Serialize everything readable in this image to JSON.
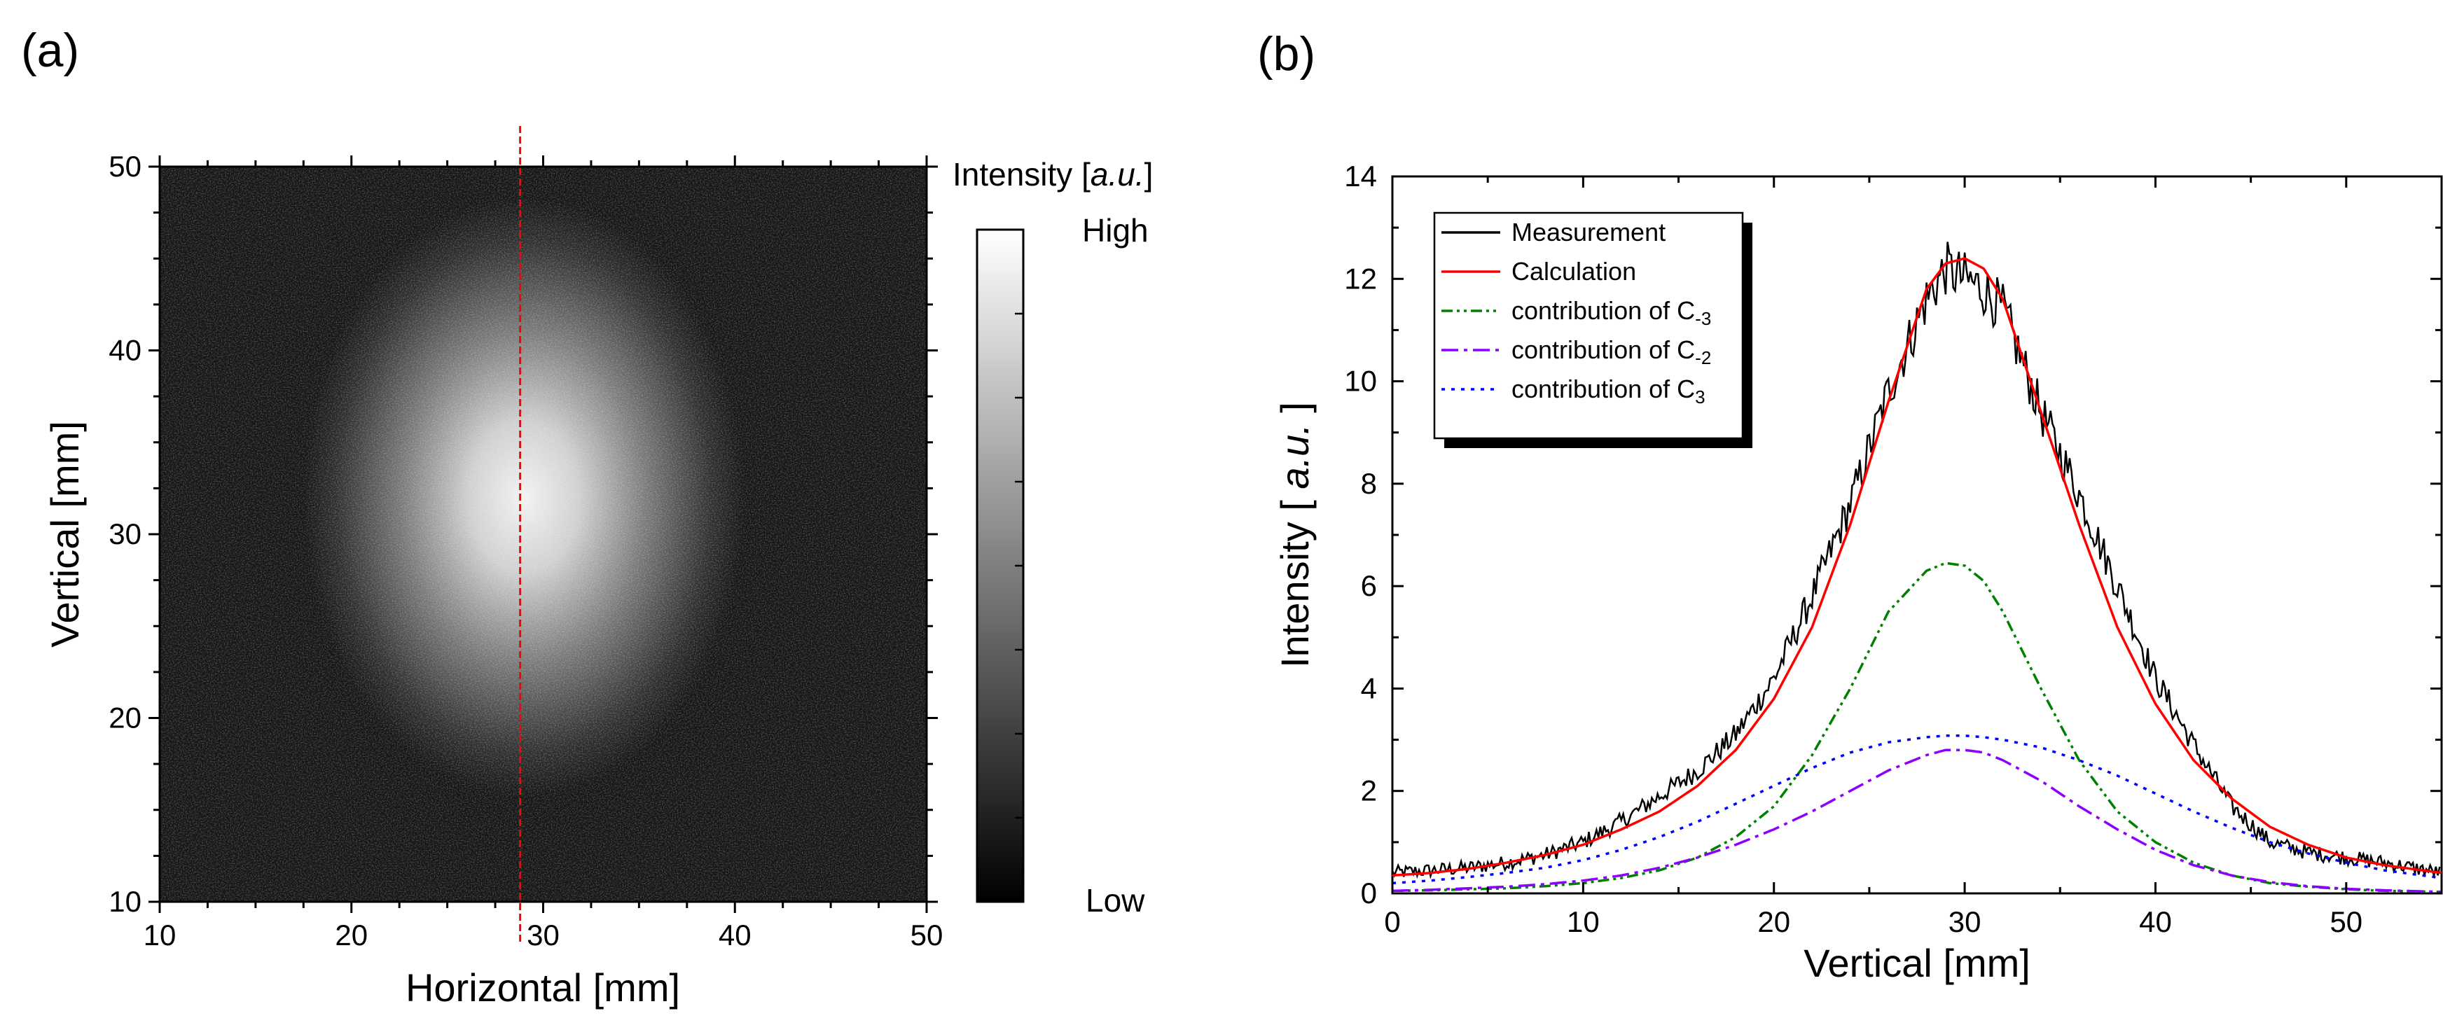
{
  "panel_a_label": "(a)",
  "panel_b_label": "(b)",
  "chart_data": [
    {
      "type": "heatmap",
      "panel": "(a)",
      "title": "",
      "xlabel": "Horizontal [mm]",
      "ylabel": "Vertical [mm]",
      "xlim": [
        10,
        50
      ],
      "ylim": [
        10,
        50
      ],
      "xticks": [
        "10",
        "20",
        "30",
        "40",
        "50"
      ],
      "yticks": [
        "10",
        "20",
        "30",
        "40",
        "50"
      ],
      "colormap": "grayscale (black = low, white = high)",
      "colorbar_title_prefix": "Intensity [",
      "colorbar_title_italic": "a.u.",
      "colorbar_title_suffix": "]",
      "colorbar_high": "High",
      "colorbar_low": "Low",
      "spot_center": [
        29,
        32
      ],
      "spot_sigma_mm": [
        4.8,
        6.8
      ],
      "marker_line_x": 28.8,
      "marker_line_color": "#ff0000"
    },
    {
      "type": "line",
      "panel": "(b)",
      "xlabel": "Vertical [mm]",
      "ylabel_prefix": "Intensity [",
      "ylabel_italic": " a.u. ",
      "ylabel_suffix": "]",
      "xlim": [
        0,
        55
      ],
      "ylim": [
        0,
        14
      ],
      "xticks": [
        "0",
        "10",
        "20",
        "30",
        "40",
        "50"
      ],
      "yticks": [
        "0",
        "2",
        "4",
        "6",
        "8",
        "10",
        "12",
        "14"
      ],
      "legend_position": "top-left",
      "series": [
        {
          "name": "Measurement",
          "color": "#000000",
          "style": "solid",
          "x": [
            0,
            2,
            4,
            6,
            8,
            10,
            12,
            14,
            16,
            18,
            20,
            22,
            24,
            26,
            28,
            29,
            30,
            31,
            32,
            34,
            36,
            38,
            40,
            42,
            44,
            46,
            48,
            50,
            52,
            55
          ],
          "y": [
            0.4,
            0.45,
            0.5,
            0.6,
            0.75,
            1.0,
            1.4,
            1.9,
            2.4,
            3.1,
            4.2,
            5.8,
            7.6,
            9.8,
            11.6,
            12.2,
            12.0,
            11.8,
            11.4,
            9.4,
            7.8,
            6.0,
            4.2,
            2.9,
            1.7,
            1.0,
            0.8,
            0.7,
            0.6,
            0.4
          ]
        },
        {
          "name": "Calculation",
          "color": "#ff0000",
          "style": "solid",
          "x": [
            0,
            2,
            4,
            6,
            8,
            10,
            12,
            14,
            16,
            18,
            20,
            22,
            24,
            26,
            28,
            29,
            30,
            31,
            32,
            34,
            36,
            38,
            40,
            42,
            44,
            46,
            48,
            50,
            52,
            55
          ],
          "y": [
            0.35,
            0.4,
            0.48,
            0.6,
            0.75,
            0.95,
            1.25,
            1.6,
            2.1,
            2.8,
            3.8,
            5.2,
            7.2,
            9.6,
            11.8,
            12.3,
            12.4,
            12.2,
            11.6,
            9.4,
            7.2,
            5.2,
            3.7,
            2.6,
            1.85,
            1.3,
            0.95,
            0.7,
            0.55,
            0.4
          ]
        },
        {
          "name": "contribution of C",
          "subscript": "-3",
          "color": "#008000",
          "style": "dash-dot-dot",
          "x": [
            0,
            2,
            4,
            6,
            8,
            10,
            12,
            14,
            16,
            18,
            20,
            22,
            24,
            26,
            28,
            29,
            30,
            31,
            32,
            34,
            36,
            38,
            40,
            42,
            44,
            46,
            48,
            50,
            52,
            55
          ],
          "y": [
            0.05,
            0.06,
            0.08,
            0.1,
            0.14,
            0.2,
            0.3,
            0.45,
            0.7,
            1.1,
            1.7,
            2.7,
            4.0,
            5.5,
            6.3,
            6.45,
            6.4,
            6.1,
            5.5,
            4.0,
            2.6,
            1.6,
            1.0,
            0.6,
            0.35,
            0.2,
            0.13,
            0.08,
            0.05,
            0.03
          ]
        },
        {
          "name": "contribution of C",
          "subscript": "-2",
          "color": "#8b00ff",
          "style": "dash-dot",
          "x": [
            0,
            2,
            4,
            6,
            8,
            10,
            12,
            14,
            16,
            18,
            20,
            22,
            24,
            26,
            28,
            29,
            30,
            31,
            32,
            34,
            36,
            38,
            40,
            42,
            44,
            46,
            48,
            50,
            52,
            55
          ],
          "y": [
            0.05,
            0.07,
            0.1,
            0.13,
            0.18,
            0.25,
            0.35,
            0.5,
            0.7,
            0.95,
            1.25,
            1.6,
            2.0,
            2.4,
            2.7,
            2.8,
            2.8,
            2.75,
            2.6,
            2.2,
            1.7,
            1.25,
            0.85,
            0.55,
            0.35,
            0.22,
            0.14,
            0.09,
            0.06,
            0.03
          ]
        },
        {
          "name": "contribution of C",
          "subscript": "3",
          "color": "#0000ff",
          "style": "dotted",
          "x": [
            0,
            2,
            4,
            6,
            8,
            10,
            12,
            14,
            16,
            18,
            20,
            22,
            24,
            26,
            28,
            29,
            30,
            31,
            32,
            34,
            36,
            38,
            40,
            42,
            44,
            46,
            48,
            50,
            52,
            55
          ],
          "y": [
            0.2,
            0.25,
            0.32,
            0.4,
            0.5,
            0.65,
            0.85,
            1.1,
            1.4,
            1.75,
            2.1,
            2.45,
            2.75,
            2.95,
            3.05,
            3.08,
            3.08,
            3.05,
            3.0,
            2.85,
            2.6,
            2.3,
            1.95,
            1.6,
            1.28,
            1.0,
            0.78,
            0.6,
            0.45,
            0.3
          ]
        }
      ]
    }
  ]
}
